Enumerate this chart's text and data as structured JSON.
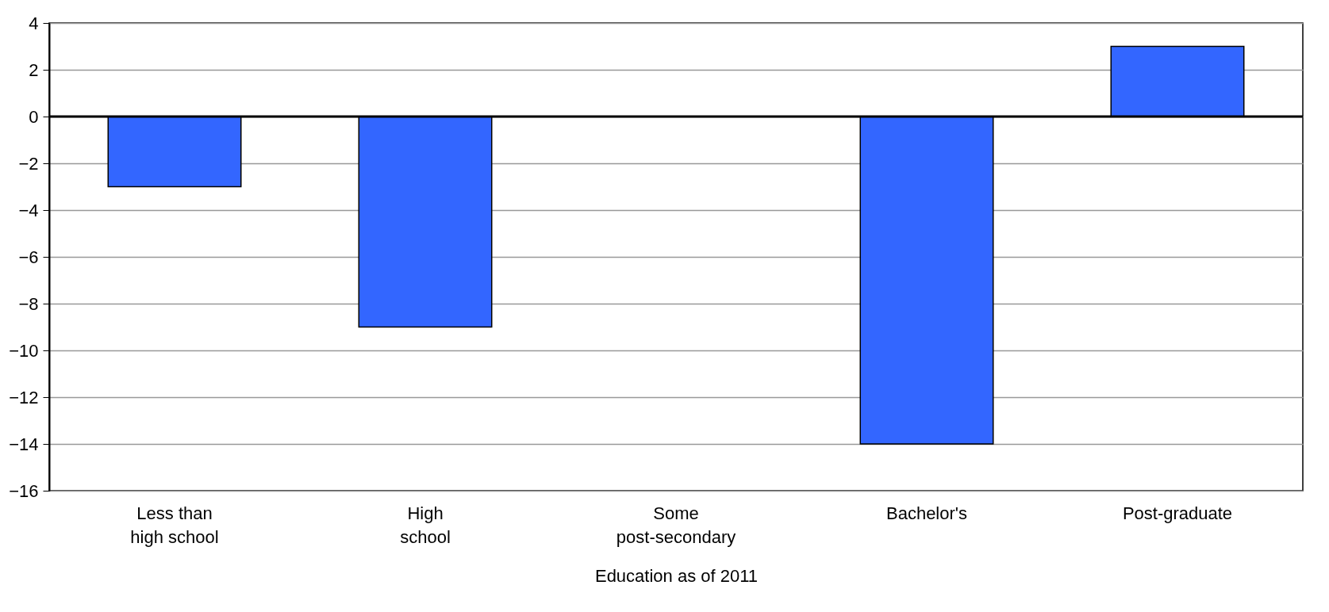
{
  "chart_data": {
    "type": "bar",
    "xlabel": "Education as of 2011",
    "categories": [
      "Less than\nhigh school",
      "High\nschool",
      "Some\npost-secondary",
      "Bachelor's",
      "Post-graduate"
    ],
    "values": [
      -3,
      -9,
      null,
      -14,
      3
    ],
    "color": "#3366ff",
    "ylim": [
      -16,
      4
    ],
    "yticks": [
      -16,
      -14,
      -12,
      -10,
      -8,
      -6,
      -4,
      -2,
      0,
      2,
      4
    ],
    "grid": "y",
    "ref_lines": [
      {
        "axis": "y",
        "value": 0,
        "color": "#000000"
      }
    ]
  }
}
